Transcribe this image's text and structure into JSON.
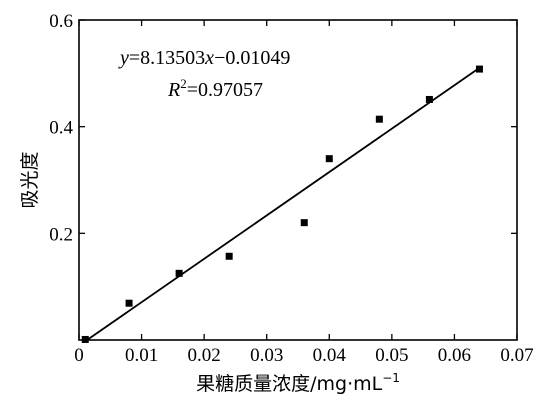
{
  "chart_data": {
    "type": "scatter",
    "xlabel": "果糖质量浓度/mg·mL",
    "xlabel_sup": "−1",
    "ylabel": "吸光度",
    "xlim": [
      0,
      0.07
    ],
    "ylim": [
      0,
      0.6
    ],
    "x_ticks": [
      0,
      0.01,
      0.02,
      0.03,
      0.04,
      0.05,
      0.06,
      0.07
    ],
    "x_tick_labels": [
      "0",
      "0.01",
      "0.02",
      "0.03",
      "0.04",
      "0.05",
      "0.06",
      "0.07"
    ],
    "y_ticks": [
      0.2,
      0.4,
      0.6
    ],
    "y_tick_labels": [
      "0.2",
      "0.4",
      "0.6"
    ],
    "grid": false,
    "series": [
      {
        "x": [
          0.001,
          0.008,
          0.016,
          0.024,
          0.036,
          0.04,
          0.048,
          0.056,
          0.064
        ],
        "y": [
          0.001,
          0.069,
          0.125,
          0.157,
          0.22,
          0.34,
          0.414,
          0.451,
          0.508
        ]
      }
    ],
    "fit": {
      "slope": 8.13503,
      "intercept": -0.01049,
      "x_range": [
        0.001,
        0.064
      ]
    },
    "annotations": {
      "equation": {
        "y_var": "y",
        "eq_part1": "=8.13503",
        "x_var": "x",
        "eq_part2": "−0.01049"
      },
      "r2": {
        "r_var": "R",
        "r_sup": "2",
        "r_value": "=0.97057"
      }
    }
  }
}
